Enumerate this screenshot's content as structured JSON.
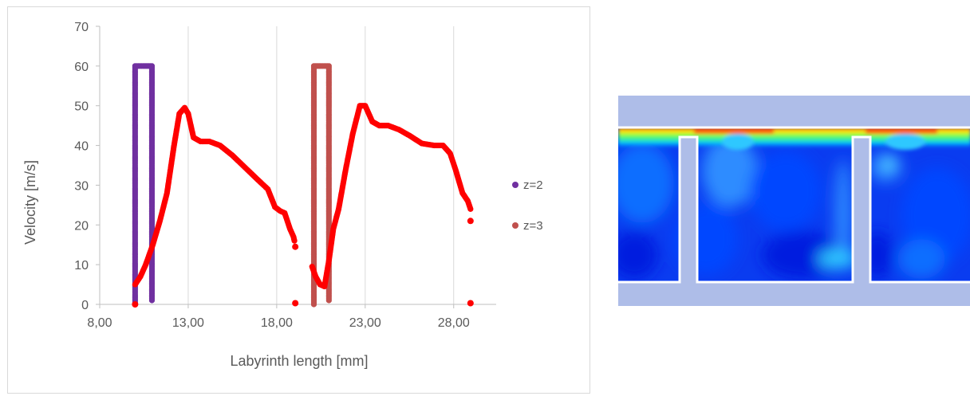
{
  "chart_data": {
    "type": "scatter",
    "title": "",
    "xlabel": "Labyrinth length [mm]",
    "ylabel": "Velocity [m/s]",
    "xlim": [
      8,
      30.4
    ],
    "ylim": [
      0,
      70
    ],
    "xticks": [
      8,
      13,
      18,
      23,
      28
    ],
    "xtick_labels": [
      "8,00",
      "13,00",
      "18,00",
      "23,00",
      "28,00"
    ],
    "yticks": [
      0,
      10,
      20,
      30,
      40,
      50,
      60,
      70
    ],
    "ytick_labels": [
      "0",
      "10",
      "20",
      "30",
      "40",
      "50",
      "60",
      "70"
    ],
    "grid": "vertical",
    "legend_position": "right",
    "series": [
      {
        "name": "z=2",
        "color": "#7030a0",
        "x": [
          10.0,
          10.0,
          10.0,
          10.0,
          10.0,
          10.0,
          10.0,
          10.0,
          10.0,
          10.0,
          10.0,
          10.0,
          10.0,
          10.45,
          10.95,
          10.95,
          10.95,
          10.95,
          10.95,
          10.95,
          10.95,
          10.95,
          10.95,
          10.95,
          10.95,
          10.95
        ],
        "y": [
          0,
          5,
          10,
          15,
          20,
          25,
          30,
          35,
          40,
          45,
          50,
          55,
          60,
          60,
          60,
          55,
          50,
          45,
          40,
          35,
          30,
          25,
          20,
          15,
          10,
          1
        ]
      },
      {
        "name": "z=3",
        "color": "#c0504d",
        "x": [
          20.1,
          20.1,
          20.1,
          20.1,
          20.1,
          20.1,
          20.1,
          20.1,
          20.1,
          20.1,
          20.1,
          20.1,
          20.1,
          20.5,
          20.95,
          20.95,
          20.95,
          20.95,
          20.95,
          20.95,
          20.95,
          20.95,
          20.95,
          20.95,
          20.95,
          20.95
        ],
        "y": [
          0,
          5,
          10,
          15,
          20,
          25,
          30,
          35,
          40,
          45,
          50,
          55,
          60,
          60,
          60,
          55,
          50,
          45,
          40,
          35,
          30,
          25,
          20,
          15,
          10,
          1
        ]
      },
      {
        "name": "",
        "color": "#ff0000",
        "segments": [
          {
            "x": [
              10.0,
              10.3,
              10.6,
              11.0,
              11.4,
              11.8,
              12.2,
              12.5,
              12.8,
              13.0,
              13.3,
              13.7,
              14.2,
              14.8,
              15.5,
              16.2,
              16.9,
              17.5,
              17.9,
              18.2,
              18.45,
              18.75,
              18.95,
              19.0
            ],
            "y": [
              5,
              7,
              10,
              15,
              21,
              28,
              40,
              48,
              49.5,
              48,
              42,
              41,
              41,
              40,
              37.5,
              34.5,
              31.5,
              29,
              24.5,
              23.5,
              23,
              19,
              17,
              16
            ]
          },
          {
            "x": [
              20.0,
              20.2,
              20.45,
              20.7,
              20.95,
              21.2,
              21.5,
              21.9,
              22.3,
              22.7,
              23.0,
              23.4,
              23.8,
              24.3,
              24.9,
              25.5,
              26.2,
              26.9,
              27.4,
              27.8,
              28.1,
              28.5,
              28.8,
              28.95
            ],
            "y": [
              9.5,
              7,
              5,
              4.5,
              11,
              19,
              24,
              34,
              43,
              50,
              50,
              46,
              45,
              45,
              44,
              42.5,
              40.5,
              40,
              40,
              38,
              34,
              28,
              26,
              24
            ]
          }
        ],
        "points_x": [
          10.0,
          19.05,
          19.05,
          28.95,
          28.95
        ],
        "points_y": [
          0,
          14.5,
          0.3,
          21,
          0.3
        ]
      }
    ]
  },
  "cfd_image": {
    "wall_color": "#aebde8",
    "seal_outline_color": "#ffffff",
    "jet_colors": [
      "#00c8ff",
      "#00ff66",
      "#ffee00",
      "#ff5a00"
    ],
    "field_colors": [
      "#001adf",
      "#0047ff",
      "#0a6eff",
      "#2d8cff"
    ]
  }
}
